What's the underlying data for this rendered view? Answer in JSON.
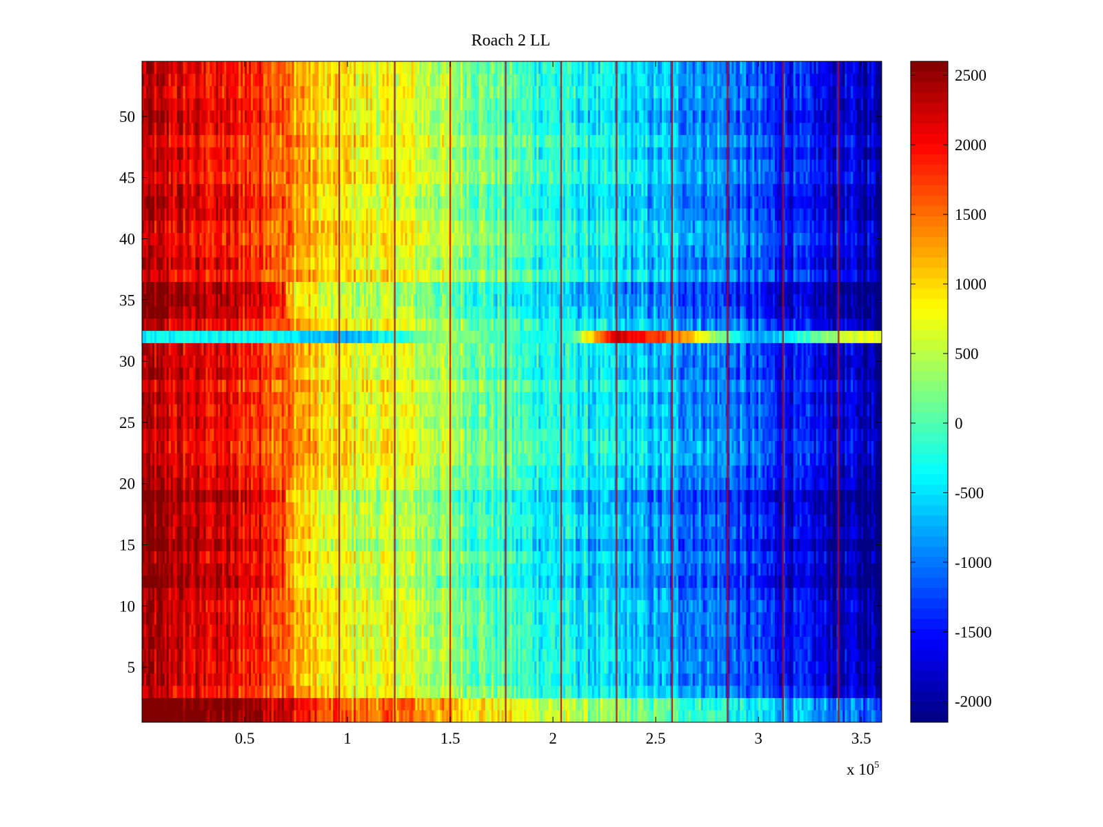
{
  "chart_data": {
    "type": "heatmap",
    "title": "Roach 2 LL",
    "xlabel": "",
    "ylabel": "",
    "colormap": "jet",
    "xlim": [
      0,
      360000
    ],
    "ylim": [
      0.5,
      54.5
    ],
    "clim": [
      -2150,
      2600
    ],
    "x_ticks": [
      50000,
      100000,
      150000,
      200000,
      250000,
      300000,
      350000
    ],
    "x_tick_labels": [
      "0.5",
      "1",
      "1.5",
      "2",
      "2.5",
      "3",
      "3.5"
    ],
    "x_exponent_label": {
      "base": "x 10",
      "exponent": "5"
    },
    "y_ticks": [
      5,
      10,
      15,
      20,
      25,
      30,
      35,
      40,
      45,
      50
    ],
    "y_tick_labels": [
      "5",
      "10",
      "15",
      "20",
      "25",
      "30",
      "35",
      "40",
      "45",
      "50"
    ],
    "colorbar": {
      "ticks": [
        2500,
        2000,
        1500,
        1000,
        500,
        0,
        -500,
        -1000,
        -1500,
        -2000
      ],
      "tick_labels": [
        "2500",
        "2000",
        "1500",
        "1000",
        "500",
        "0",
        "-500",
        "-1000",
        "-1500",
        "-2000"
      ]
    },
    "rows": 54,
    "trend": {
      "x": [
        0,
        20000,
        60000,
        90000,
        130000,
        180000,
        230000,
        280000,
        320000,
        360000
      ],
      "value": [
        2300,
        2100,
        1800,
        900,
        700,
        0,
        -500,
        -900,
        -1500,
        -1900
      ]
    },
    "anomalous_row": {
      "row": 32,
      "x": [
        0,
        60000,
        100000,
        120000,
        150000,
        175000,
        205000,
        230000,
        260000,
        300000,
        340000,
        350000
      ],
      "value": [
        -400,
        -300,
        -800,
        -300,
        400,
        -100,
        -400,
        2200,
        1500,
        -900,
        500,
        700
      ]
    },
    "bright_rows": [
      1,
      2
    ],
    "bright_rows_offset": 700,
    "vertical_lines_x": [
      96000,
      123000,
      150000,
      177000,
      204000,
      231000,
      258000,
      285000,
      312000,
      339000
    ],
    "vertical_lines_value": 2300
  }
}
